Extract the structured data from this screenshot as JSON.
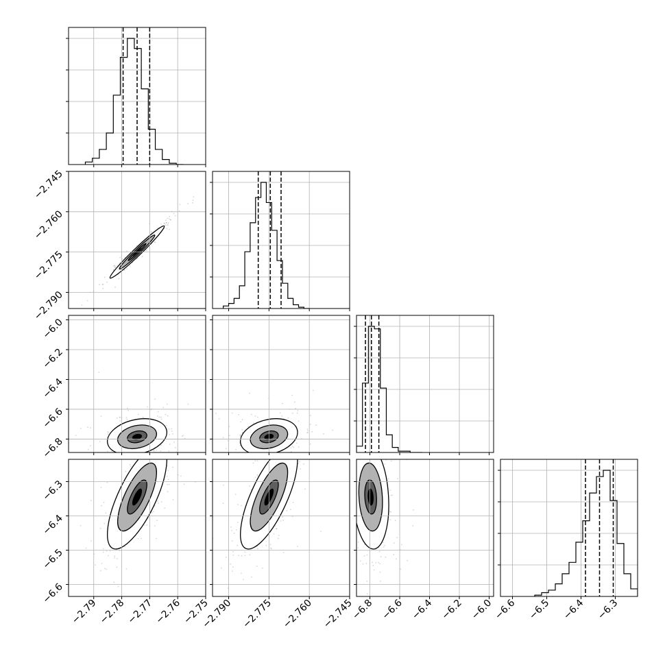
{
  "chart_data": {
    "type": "corner",
    "n_params": 4,
    "grid": true,
    "colors": {
      "line": "#000000",
      "grid": "#b0b0b0",
      "points": "#8a8a8a",
      "density_dark": "#000000",
      "density_mid": "#555555",
      "density_light": "#aaaaaa"
    },
    "params": [
      {
        "range": [
          -2.799,
          -2.75
        ],
        "ticks": [
          {
            "v": -2.79,
            "label": "−2.79"
          },
          {
            "v": -2.78,
            "label": "−2.78"
          },
          {
            "v": -2.77,
            "label": "−2.77"
          },
          {
            "v": -2.76,
            "label": "−2.76"
          },
          {
            "v": -2.75,
            "label": "−2.75"
          }
        ],
        "quantiles": [
          -2.7795,
          -2.7745,
          -2.77
        ],
        "hist": {
          "bins": [
            -2.793,
            -2.7905,
            -2.788,
            -2.7855,
            -2.783,
            -2.7805,
            -2.778,
            -2.7755,
            -2.773,
            -2.7705,
            -2.768,
            -2.7655,
            -2.763,
            -2.7605,
            -2.758
          ],
          "counts": [
            2,
            5,
            12,
            25,
            55,
            85,
            100,
            92,
            60,
            28,
            12,
            4,
            1,
            0,
            0
          ]
        }
      },
      {
        "range": [
          -2.796,
          -2.745
        ],
        "ticks": [
          {
            "v": -2.79,
            "label": "−2.790"
          },
          {
            "v": -2.775,
            "label": "−2.775"
          },
          {
            "v": -2.76,
            "label": "−2.760"
          },
          {
            "v": -2.745,
            "label": "−2.745"
          }
        ],
        "quantiles": [
          -2.779,
          -2.7745,
          -2.7705
        ],
        "hist": {
          "bins": [
            -2.792,
            -2.79,
            -2.788,
            -2.786,
            -2.784,
            -2.782,
            -2.78,
            -2.778,
            -2.776,
            -2.774,
            -2.772,
            -2.77,
            -2.768,
            -2.766,
            -2.764,
            -2.762,
            -2.76
          ],
          "counts": [
            2,
            4,
            8,
            18,
            45,
            68,
            88,
            100,
            84,
            62,
            38,
            20,
            8,
            3,
            1,
            0
          ]
        }
      },
      {
        "range": [
          -6.89,
          -5.97
        ],
        "ticks": [
          {
            "v": -6.8,
            "label": "−6.8"
          },
          {
            "v": -6.6,
            "label": "−6.6"
          },
          {
            "v": -6.4,
            "label": "−6.4"
          },
          {
            "v": -6.2,
            "label": "−6.2"
          },
          {
            "v": -6.0,
            "label": "−6.0"
          }
        ],
        "quantiles": [
          -6.83,
          -6.79,
          -6.74
        ],
        "hist": {
          "bins": [
            -6.89,
            -6.85,
            -6.81,
            -6.77,
            -6.73,
            -6.69,
            -6.65,
            -6.61,
            -6.57,
            -6.53,
            -6.49,
            -6.45
          ],
          "counts": [
            5,
            55,
            100,
            98,
            51,
            14,
            4,
            1,
            1,
            0,
            0
          ]
        }
      },
      {
        "range": [
          -6.635,
          -6.235
        ],
        "ticks": [
          {
            "v": -6.6,
            "label": "−6.6"
          },
          {
            "v": -6.5,
            "label": "−6.5"
          },
          {
            "v": -6.4,
            "label": "−6.4"
          },
          {
            "v": -6.3,
            "label": "−6.3"
          }
        ],
        "quantiles": [
          -6.387,
          -6.346,
          -6.306
        ],
        "hist": {
          "bins": [
            -6.535,
            -6.515,
            -6.495,
            -6.475,
            -6.455,
            -6.435,
            -6.415,
            -6.395,
            -6.375,
            -6.355,
            -6.335,
            -6.315,
            -6.295,
            -6.275,
            -6.255,
            -6.235
          ],
          "counts": [
            1,
            3,
            5,
            10,
            18,
            27,
            43,
            60,
            82,
            95,
            100,
            76,
            42,
            18,
            6
          ]
        }
      }
    ],
    "pairs": [
      {
        "row": 1,
        "col": 0,
        "center": [
          -2.7745,
          -2.775
        ],
        "sx": 0.0032,
        "sy": 0.0032,
        "rho": 0.98
      },
      {
        "row": 2,
        "col": 0,
        "center": [
          -2.7745,
          -6.785
        ],
        "sx": 0.0035,
        "sy": 0.04,
        "rho": 0.25
      },
      {
        "row": 2,
        "col": 1,
        "center": [
          -2.775,
          -6.785
        ],
        "sx": 0.0035,
        "sy": 0.04,
        "rho": 0.25
      },
      {
        "row": 3,
        "col": 0,
        "center": [
          -2.7745,
          -6.345
        ],
        "sx": 0.0035,
        "sy": 0.05,
        "rho": 0.72
      },
      {
        "row": 3,
        "col": 1,
        "center": [
          -2.775,
          -6.345
        ],
        "sx": 0.0035,
        "sy": 0.05,
        "rho": 0.72
      },
      {
        "row": 3,
        "col": 2,
        "center": [
          -6.795,
          -6.345
        ],
        "sx": 0.04,
        "sy": 0.05,
        "rho": -0.15
      }
    ],
    "contour_levels": [
      0.39,
      0.86,
      0.99
    ]
  }
}
